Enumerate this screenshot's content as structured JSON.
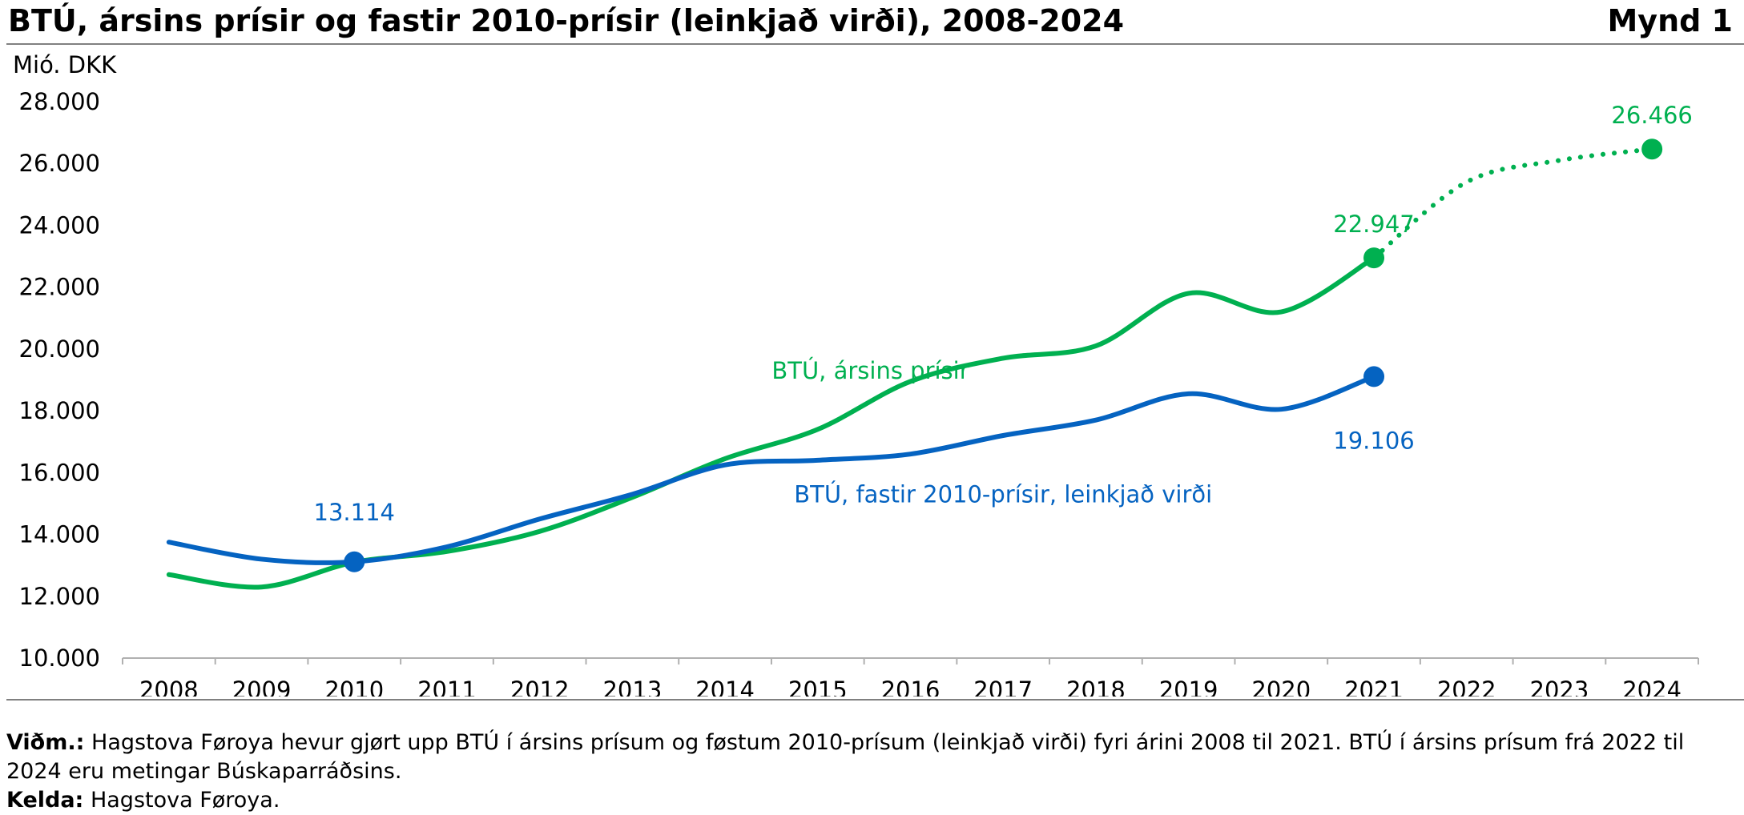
{
  "title": "BTÚ, ársins prísir og fastir 2010-prísir (leinkjað virði), 2008-2024",
  "figure_label": "Mynd 1",
  "footnote": {
    "note_label": "Viðm.:",
    "note_text": "Hagstova Føroya hevur gjørt upp BTÚ í ársins prísum og føstum 2010-prísum (leinkjað virði) fyri árini 2008 til 2021. BTÚ í ársins prísum frá 2022 til 2024 eru metingar Búskaparráðsins.",
    "source_label": "Kelda:",
    "source_text": "Hagstova Føroya."
  },
  "chart_data": {
    "type": "line",
    "ylabel": "Mió. DKK",
    "ylim": [
      10000,
      28000
    ],
    "y_ticks": [
      10000,
      12000,
      14000,
      16000,
      18000,
      20000,
      22000,
      24000,
      26000,
      28000
    ],
    "y_tick_labels": [
      "10.000",
      "12.000",
      "14.000",
      "16.000",
      "18.000",
      "20.000",
      "22.000",
      "24.000",
      "26.000",
      "28.000"
    ],
    "categories": [
      "2008",
      "2009",
      "2010",
      "2011",
      "2012",
      "2013",
      "2014",
      "2015",
      "2016",
      "2017",
      "2018",
      "2019",
      "2020",
      "2021",
      "2022",
      "2023",
      "2024"
    ],
    "series": [
      {
        "name": "BTÚ, ársins prísir",
        "color": "#00b050",
        "values": [
          12700,
          12300,
          13100,
          13450,
          14100,
          15200,
          16450,
          17400,
          18950,
          19700,
          20100,
          21800,
          21200,
          22947,
          null,
          null,
          null
        ],
        "forecast_values": [
          null,
          null,
          null,
          null,
          null,
          null,
          null,
          null,
          null,
          null,
          null,
          null,
          null,
          22947,
          25400,
          26100,
          26466
        ],
        "highlight_points": [
          {
            "x": "2021",
            "value": 22947,
            "label": "22.947"
          },
          {
            "x": "2024",
            "value": 26466,
            "label": "26.466"
          }
        ]
      },
      {
        "name": "BTÚ, fastir 2010-prísir, leinkjað virði",
        "color": "#0563c1",
        "values": [
          13750,
          13200,
          13114,
          13600,
          14500,
          15300,
          16250,
          16400,
          16600,
          17200,
          17700,
          18550,
          18050,
          19106,
          null,
          null,
          null
        ],
        "highlight_points": [
          {
            "x": "2010",
            "value": 13114,
            "label": "13.114"
          },
          {
            "x": "2021",
            "value": 19106,
            "label": "19.106"
          }
        ]
      }
    ],
    "grid": false,
    "legend": "inline labels"
  }
}
